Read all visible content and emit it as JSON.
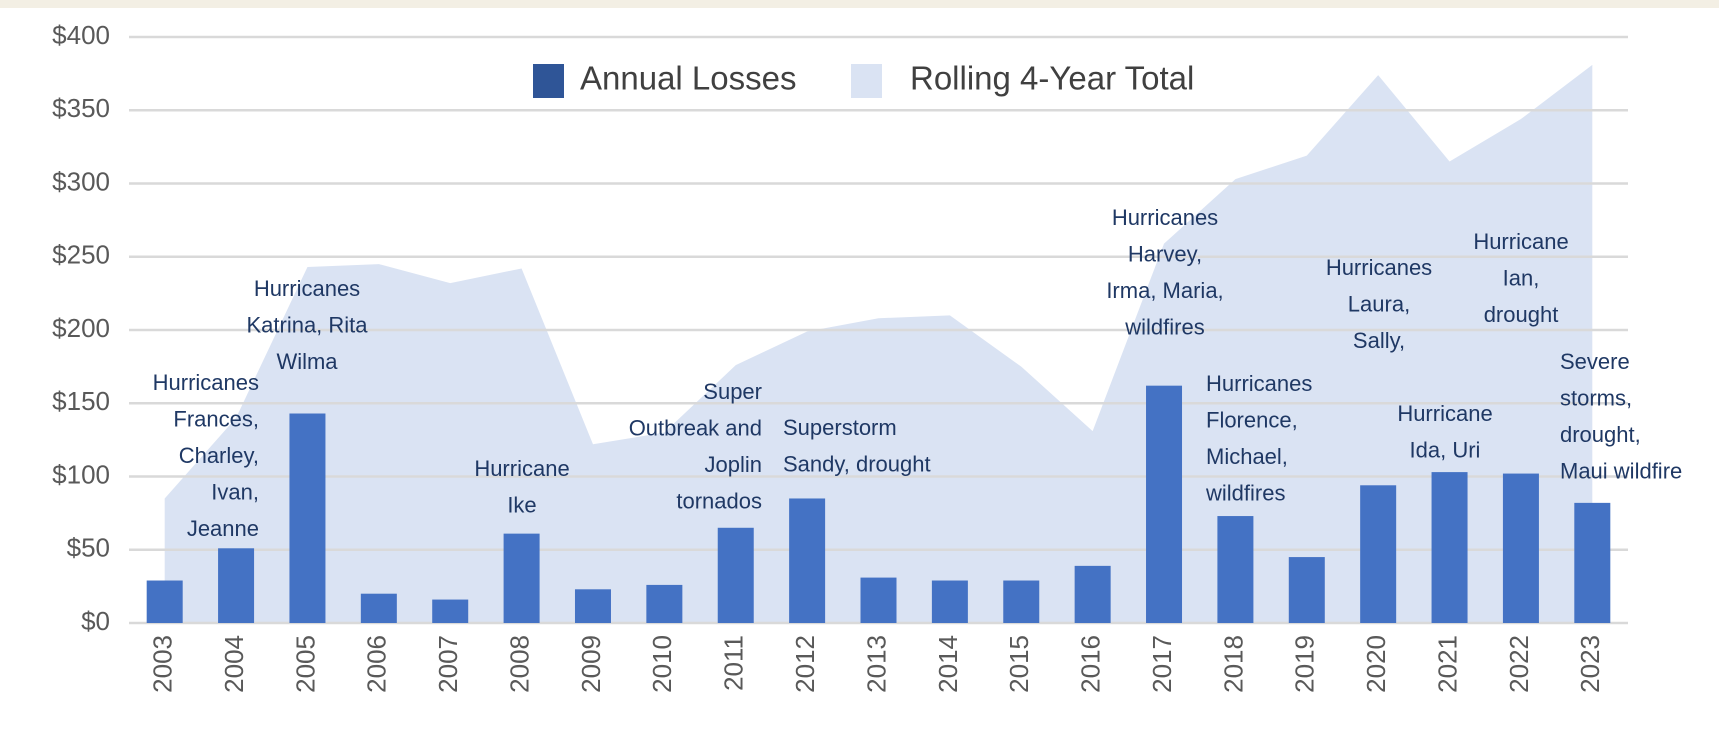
{
  "chart_data": {
    "type": "bar",
    "categories": [
      "2003",
      "2004",
      "2005",
      "2006",
      "2007",
      "2008",
      "2009",
      "2010",
      "2011",
      "2012",
      "2013",
      "2014",
      "2015",
      "2016",
      "2017",
      "2018",
      "2019",
      "2020",
      "2021",
      "2022",
      "2023"
    ],
    "series": [
      {
        "name": "Annual Losses",
        "color": "#4472c4",
        "legend_color": "#2f5597",
        "type": "bar",
        "values": [
          29,
          51,
          143,
          20,
          16,
          61,
          23,
          26,
          65,
          85,
          31,
          29,
          29,
          39,
          162,
          73,
          45,
          94,
          103,
          102,
          82
        ]
      },
      {
        "name": "Rolling 4-Year Total",
        "color": "#dae3f3",
        "type": "area",
        "values": [
          85,
          140,
          243,
          245,
          232,
          242,
          122,
          130,
          176,
          199,
          208,
          210,
          175,
          131,
          259,
          303,
          319,
          374,
          315,
          344,
          381
        ]
      }
    ],
    "ylim": [
      0,
      400
    ],
    "yticks": [
      {
        "value": 0,
        "label": "$0"
      },
      {
        "value": 50,
        "label": "$50"
      },
      {
        "value": 100,
        "label": "$100"
      },
      {
        "value": 150,
        "label": "$150"
      },
      {
        "value": 200,
        "label": "$200"
      },
      {
        "value": 250,
        "label": "$250"
      },
      {
        "value": 300,
        "label": "$300"
      },
      {
        "value": 350,
        "label": "$350"
      },
      {
        "value": 400,
        "label": "$400"
      }
    ],
    "grid": true,
    "legend": "top",
    "annotations": [
      {
        "lines": [
          "Hurricanes",
          "Frances,",
          "Charley,",
          "Ivan,",
          "Jeanne"
        ]
      },
      {
        "lines": [
          "Hurricanes",
          "Katrina, Rita",
          "Wilma"
        ]
      },
      {
        "lines": [
          "Hurricane",
          "Ike"
        ]
      },
      {
        "lines": [
          "Super",
          "Outbreak and",
          "Joplin",
          "tornados"
        ]
      },
      {
        "lines": [
          "Superstorm",
          "Sandy, drought"
        ]
      },
      {
        "lines": [
          "Hurricanes",
          "Harvey,",
          "Irma, Maria,",
          "wildfires"
        ]
      },
      {
        "lines": [
          "Hurricanes",
          "Florence,",
          "Michael,",
          "wildfires"
        ]
      },
      {
        "lines": [
          "Hurricanes",
          "Laura,",
          "Sally,"
        ]
      },
      {
        "lines": [
          "Hurricane",
          "Ida, Uri"
        ]
      },
      {
        "lines": [
          "Hurricane",
          "Ian,",
          "drought"
        ]
      },
      {
        "lines": [
          "Severe",
          "storms,",
          "drought,",
          "Maui wildfire"
        ]
      }
    ]
  }
}
